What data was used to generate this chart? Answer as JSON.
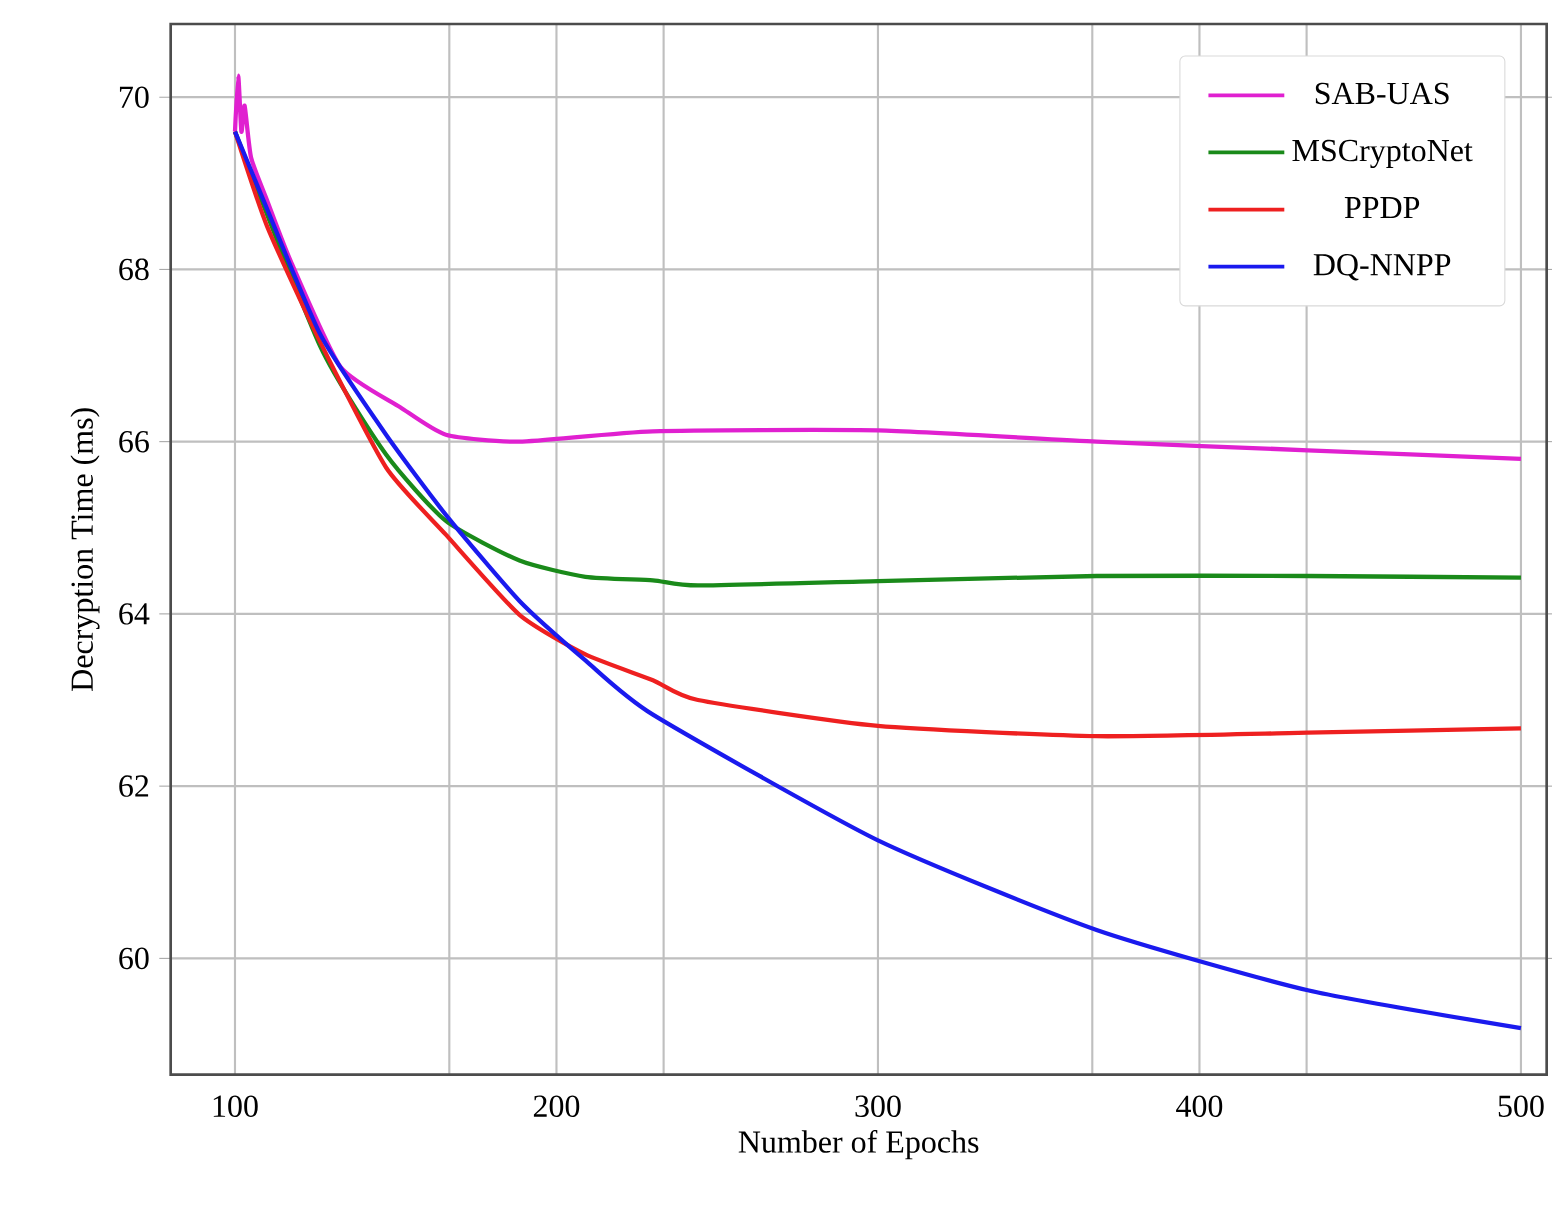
{
  "chart_data": {
    "type": "line",
    "xlabel": "Number of Epochs",
    "ylabel": "Decryption Time (ms)",
    "xlim": [
      80,
      508
    ],
    "ylim": [
      58.65,
      70.85
    ],
    "xticks": [
      100,
      {
        "value": 166.67,
        "label": null
      },
      200,
      {
        "value": 233.33,
        "label": null
      },
      300,
      {
        "value": 366.67,
        "label": null
      },
      400,
      {
        "value": 433.33,
        "label": null
      },
      500
    ],
    "yticks": [
      60,
      62,
      64,
      66,
      68,
      70
    ],
    "grid": true,
    "legend": "top right",
    "marker": "none",
    "line_style": "solid",
    "series": [
      {
        "name": "SAB-UAS",
        "color": "#e020d0",
        "x": [
          100,
          101,
          102,
          103,
          105,
          110,
          117.3,
          132.8,
          151.4,
          165.6,
          188.5,
          230,
          300,
          368,
          433.7,
          500
        ],
        "values": [
          69.6,
          70.25,
          69.6,
          69.9,
          69.3,
          68.8,
          68.1,
          66.87,
          66.4,
          66.08,
          66.0,
          66.12,
          66.13,
          66.0,
          65.9,
          65.8
        ]
      },
      {
        "name": "MSCryptoNet",
        "color": "#1a8a1a",
        "x": [
          100,
          126.6,
          147,
          165.6,
          188.5,
          209,
          230,
          244,
          300,
          368,
          433.7,
          500
        ],
        "values": [
          69.6,
          67.1,
          65.85,
          65.08,
          64.62,
          64.43,
          64.39,
          64.33,
          64.38,
          64.44,
          64.44,
          64.42
        ]
      },
      {
        "name": "PPDP",
        "color": "#ee2020",
        "x": [
          100,
          110,
          126.6,
          147,
          165.6,
          188.5,
          209,
          230,
          244,
          300,
          368,
          433.7,
          500
        ],
        "values": [
          69.6,
          68.5,
          67.15,
          65.7,
          64.92,
          63.99,
          63.53,
          63.23,
          63.0,
          62.7,
          62.58,
          62.62,
          62.67
        ]
      },
      {
        "name": "DQ-NNPP",
        "color": "#1a1aee",
        "x": [
          100,
          110,
          126.6,
          147,
          165.6,
          188.5,
          209,
          230,
          300,
          368,
          433.7,
          500
        ],
        "values": [
          69.6,
          68.7,
          67.24,
          66.08,
          65.15,
          64.15,
          63.46,
          62.83,
          61.37,
          60.33,
          59.63,
          59.19
        ]
      }
    ]
  }
}
